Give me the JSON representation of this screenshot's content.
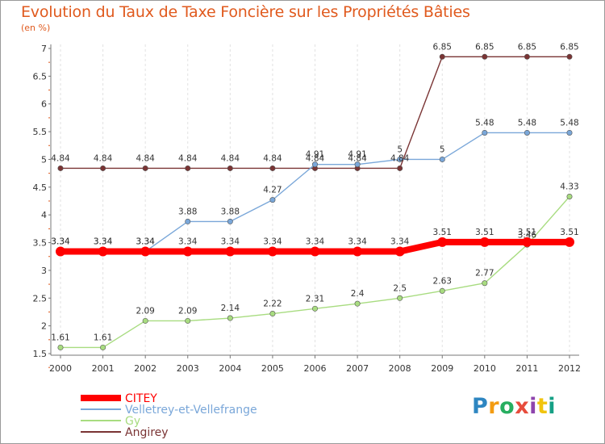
{
  "chart_data": {
    "type": "line",
    "title": "Evolution du Taux de Taxe Foncière sur les Propriétés Bâties",
    "subtitle": "(en %)",
    "xlabel": "",
    "ylabel": "",
    "categories": [
      "2000",
      "2001",
      "2002",
      "2003",
      "2004",
      "2005",
      "2006",
      "2007",
      "2008",
      "2009",
      "2010",
      "2011",
      "2012"
    ],
    "ylim": [
      1.5,
      7
    ],
    "yticks": [
      "1.5",
      "2",
      "2.5",
      "3",
      "3.5",
      "4",
      "4.5",
      "5",
      "5.5",
      "6",
      "6.5",
      "7"
    ],
    "legend_position": "bottom-left",
    "series": [
      {
        "name": "CITEY",
        "color": "#ff0000",
        "values": [
          3.34,
          3.34,
          3.34,
          3.34,
          3.34,
          3.34,
          3.34,
          3.34,
          3.34,
          3.51,
          3.51,
          3.51,
          3.51
        ],
        "labels": [
          "3.34",
          "3.34",
          "3.34",
          "3.34",
          "3.34",
          "3.34",
          "3.34",
          "3.34",
          "3.34",
          "3.51",
          "3.51",
          "3.51",
          "3.51"
        ]
      },
      {
        "name": "Velletrey-et-Vellefrange",
        "color": "#7aa7d9",
        "values": [
          3.34,
          3.34,
          3.34,
          3.88,
          3.88,
          4.27,
          4.91,
          4.91,
          5,
          5,
          5.48,
          5.48,
          5.48
        ],
        "labels": [
          "3.34",
          "3.34",
          "3.34",
          "3.88",
          "3.88",
          "4.27",
          "4.91",
          "4.91",
          "5",
          "5",
          "5.48",
          "5.48",
          "5.48"
        ]
      },
      {
        "name": "Gy",
        "color": "#a8dc80",
        "values": [
          1.61,
          1.61,
          2.09,
          2.09,
          2.14,
          2.22,
          2.31,
          2.4,
          2.5,
          2.63,
          2.77,
          3.46,
          4.33
        ],
        "labels": [
          "1.61",
          "1.61",
          "2.09",
          "2.09",
          "2.14",
          "2.22",
          "2.31",
          "2.4",
          "2.5",
          "2.63",
          "2.77",
          "3.46",
          "4.33"
        ]
      },
      {
        "name": "Angirey",
        "color": "#7a3434",
        "values": [
          4.84,
          4.84,
          4.84,
          4.84,
          4.84,
          4.84,
          4.84,
          4.84,
          4.84,
          6.85,
          6.85,
          6.85,
          6.85
        ],
        "labels": [
          "4.84",
          "4.84",
          "4.84",
          "4.84",
          "4.84",
          "4.84",
          "4.84",
          "4.84",
          "4.84",
          "6.85",
          "6.85",
          "6.85",
          "6.85"
        ]
      }
    ]
  },
  "branding": {
    "logo_letters": [
      "P",
      "r",
      "o",
      "x",
      "i",
      "t",
      "i"
    ],
    "logo_colors": [
      "#2e86c1",
      "#f39c12",
      "#27ae60",
      "#e74c3c",
      "#8e44ad",
      "#f1c40f",
      "#16a085"
    ]
  }
}
